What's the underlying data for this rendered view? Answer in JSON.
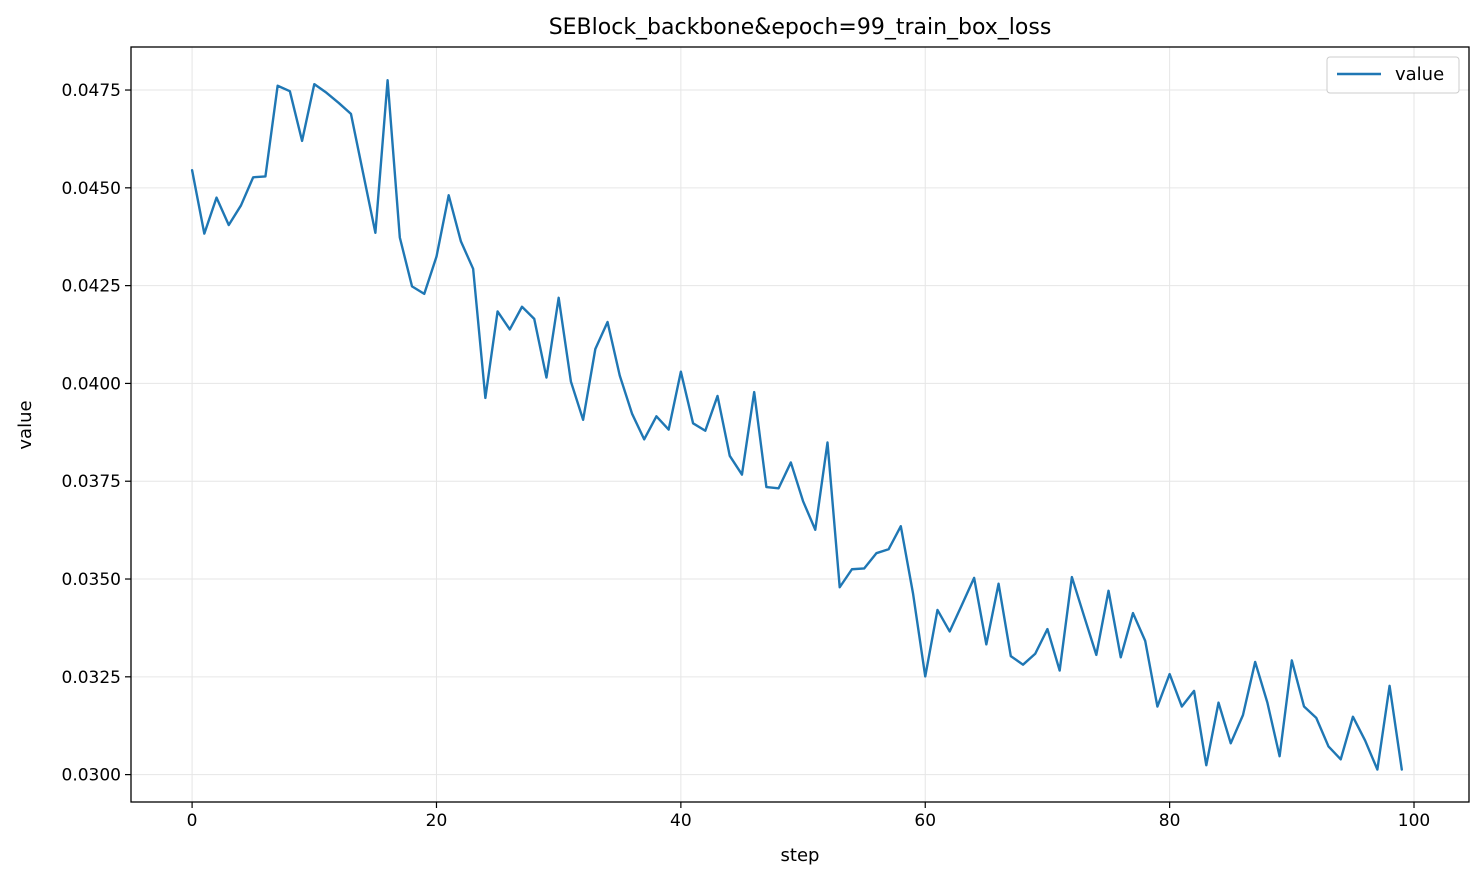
{
  "chart_data": {
    "type": "line",
    "title": "SEBlock_backbone&epoch=99_train_box_loss",
    "xlabel": "step",
    "ylabel": "value",
    "xlim": [
      -5,
      104.5
    ],
    "ylim": [
      0.0293,
      0.0486
    ],
    "xticks": [
      0,
      20,
      40,
      60,
      80,
      100
    ],
    "xtick_labels": [
      "0",
      "20",
      "40",
      "60",
      "80",
      "100"
    ],
    "yticks": [
      0.03,
      0.0325,
      0.035,
      0.0375,
      0.04,
      0.0425,
      0.045,
      0.0475
    ],
    "ytick_labels": [
      "0.0300",
      "0.0325",
      "0.0350",
      "0.0375",
      "0.0400",
      "0.0425",
      "0.0450",
      "0.0475"
    ],
    "grid": true,
    "legend_position": "top-right",
    "series": [
      {
        "name": "value",
        "color": "#1f77b4",
        "x": [
          0,
          1,
          2,
          3,
          4,
          5,
          6,
          7,
          8,
          9,
          10,
          11,
          12,
          13,
          14,
          15,
          16,
          17,
          18,
          19,
          20,
          21,
          22,
          23,
          24,
          25,
          26,
          27,
          28,
          29,
          30,
          31,
          32,
          33,
          34,
          35,
          36,
          37,
          38,
          39,
          40,
          41,
          42,
          43,
          44,
          45,
          46,
          47,
          48,
          49,
          50,
          51,
          52,
          53,
          54,
          55,
          56,
          57,
          58,
          59,
          60,
          61,
          62,
          63,
          64,
          65,
          66,
          67,
          68,
          69,
          70,
          71,
          72,
          73,
          74,
          75,
          76,
          77,
          78,
          79,
          80,
          81,
          82,
          83,
          84,
          85,
          86,
          87,
          88,
          89,
          90,
          91,
          92,
          93,
          94,
          95,
          96,
          97,
          98,
          99
        ],
        "values": [
          0.04545,
          0.04383,
          0.04475,
          0.04405,
          0.04455,
          0.04527,
          0.04529,
          0.04761,
          0.04747,
          0.0462,
          0.04765,
          0.04743,
          0.04717,
          0.04689,
          0.04537,
          0.04385,
          0.04775,
          0.04373,
          0.04248,
          0.04229,
          0.04324,
          0.04481,
          0.04363,
          0.04293,
          0.03963,
          0.04184,
          0.04138,
          0.04196,
          0.04165,
          0.04015,
          0.04219,
          0.04005,
          0.03907,
          0.04088,
          0.04157,
          0.0402,
          0.03923,
          0.03857,
          0.03916,
          0.03882,
          0.0403,
          0.03898,
          0.03879,
          0.03968,
          0.03815,
          0.03767,
          0.03978,
          0.03735,
          0.03732,
          0.03798,
          0.03699,
          0.03626,
          0.03849,
          0.03479,
          0.03525,
          0.03527,
          0.03566,
          0.03576,
          0.03635,
          0.03463,
          0.03251,
          0.03421,
          0.03366,
          0.03434,
          0.03503,
          0.03333,
          0.03488,
          0.03303,
          0.03281,
          0.03309,
          0.03372,
          0.03266,
          0.03505,
          0.03405,
          0.03306,
          0.0347,
          0.033,
          0.03413,
          0.03342,
          0.03174,
          0.03257,
          0.03174,
          0.03214,
          0.03024,
          0.03184,
          0.0308,
          0.03152,
          0.03288,
          0.03184,
          0.03047,
          0.03292,
          0.03174,
          0.03145,
          0.03072,
          0.03039,
          0.03148,
          0.03087,
          0.03013,
          0.03227,
          0.03013
        ]
      }
    ]
  }
}
